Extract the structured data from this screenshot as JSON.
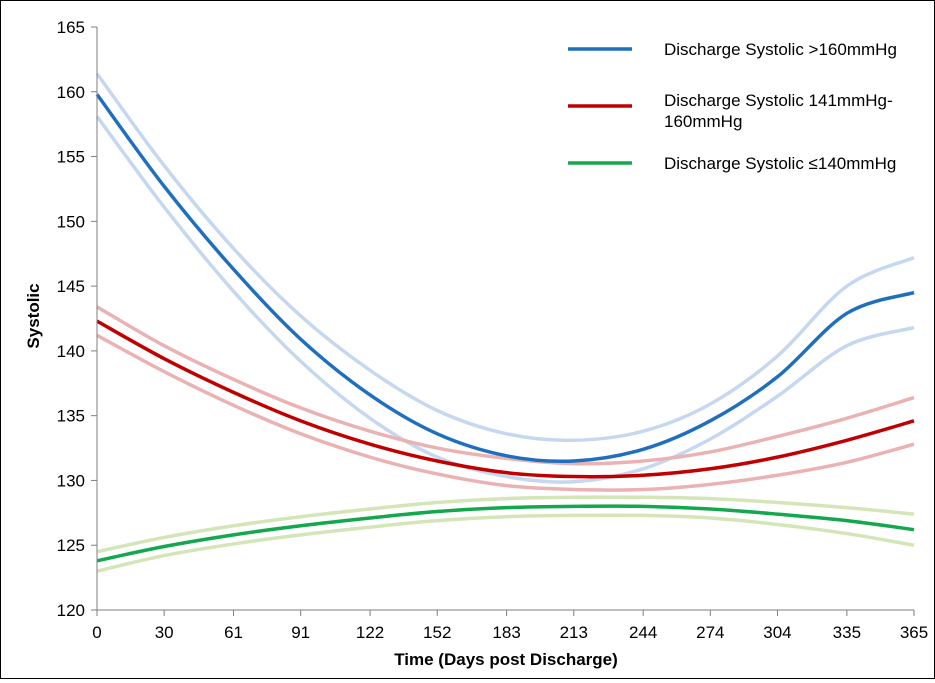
{
  "chart_data": {
    "type": "line",
    "xlabel": "Time  (Days post Discharge)",
    "ylabel": "Systolic",
    "xlim": [
      0,
      365
    ],
    "ylim": [
      120,
      165
    ],
    "xticks": [
      0,
      30,
      61,
      91,
      122,
      152,
      183,
      213,
      244,
      274,
      304,
      335,
      365
    ],
    "yticks": [
      120,
      125,
      130,
      135,
      140,
      145,
      150,
      155,
      160,
      165
    ],
    "grid": false,
    "legend_position": "top-right",
    "series": [
      {
        "name": "Discharge Systolic >160mmHg",
        "legend_lines": [
          "Discharge Systolic >160mmHg"
        ],
        "color": "#1f6fbf",
        "ci_color": "#c5d8f0",
        "x": [
          0,
          30,
          61,
          91,
          122,
          152,
          183,
          213,
          244,
          274,
          304,
          335,
          365
        ],
        "values": [
          159.8,
          152.7,
          146.3,
          140.9,
          136.6,
          133.6,
          131.9,
          131.5,
          132.4,
          134.6,
          138.0,
          142.9,
          144.5
        ],
        "upper": [
          161.4,
          154.3,
          147.9,
          142.7,
          138.5,
          135.4,
          133.6,
          133.1,
          133.8,
          135.9,
          139.6,
          145.0,
          147.2
        ],
        "lower": [
          158.1,
          151.1,
          144.6,
          139.2,
          134.8,
          131.8,
          130.3,
          129.9,
          130.9,
          133.2,
          136.5,
          140.4,
          141.8
        ]
      },
      {
        "name": "Discharge Systolic 141mmHg-160mmHg",
        "legend_lines": [
          "Discharge Systolic 141mmHg-",
          "160mmHg"
        ],
        "color": "#c00000",
        "ci_color": "#eab2b2",
        "x": [
          0,
          30,
          61,
          91,
          122,
          152,
          183,
          213,
          244,
          274,
          304,
          335,
          365
        ],
        "values": [
          142.3,
          139.4,
          136.8,
          134.6,
          132.8,
          131.5,
          130.6,
          130.3,
          130.4,
          130.9,
          131.8,
          133.1,
          134.6
        ],
        "upper": [
          143.4,
          140.4,
          137.8,
          135.6,
          133.8,
          132.5,
          131.7,
          131.3,
          131.5,
          132.2,
          133.4,
          134.8,
          136.4
        ],
        "lower": [
          141.2,
          138.4,
          135.8,
          133.6,
          131.8,
          130.5,
          129.6,
          129.3,
          129.3,
          129.7,
          130.4,
          131.4,
          132.8
        ]
      },
      {
        "name": "Discharge Systolic ≤140mmHg",
        "legend_lines": [
          "Discharge Systolic ≤140mmHg"
        ],
        "color": "#13a84d",
        "ci_color": "#d4e5b8",
        "x": [
          0,
          30,
          61,
          91,
          122,
          152,
          183,
          213,
          244,
          274,
          304,
          335,
          365
        ],
        "values": [
          123.8,
          124.9,
          125.8,
          126.5,
          127.1,
          127.6,
          127.9,
          128.0,
          128.0,
          127.8,
          127.4,
          126.9,
          126.2
        ],
        "upper": [
          124.5,
          125.6,
          126.5,
          127.2,
          127.8,
          128.3,
          128.6,
          128.7,
          128.7,
          128.6,
          128.3,
          127.9,
          127.4
        ],
        "lower": [
          123.0,
          124.2,
          125.1,
          125.8,
          126.4,
          126.9,
          127.2,
          127.3,
          127.3,
          127.1,
          126.6,
          125.9,
          125.0
        ]
      }
    ]
  }
}
